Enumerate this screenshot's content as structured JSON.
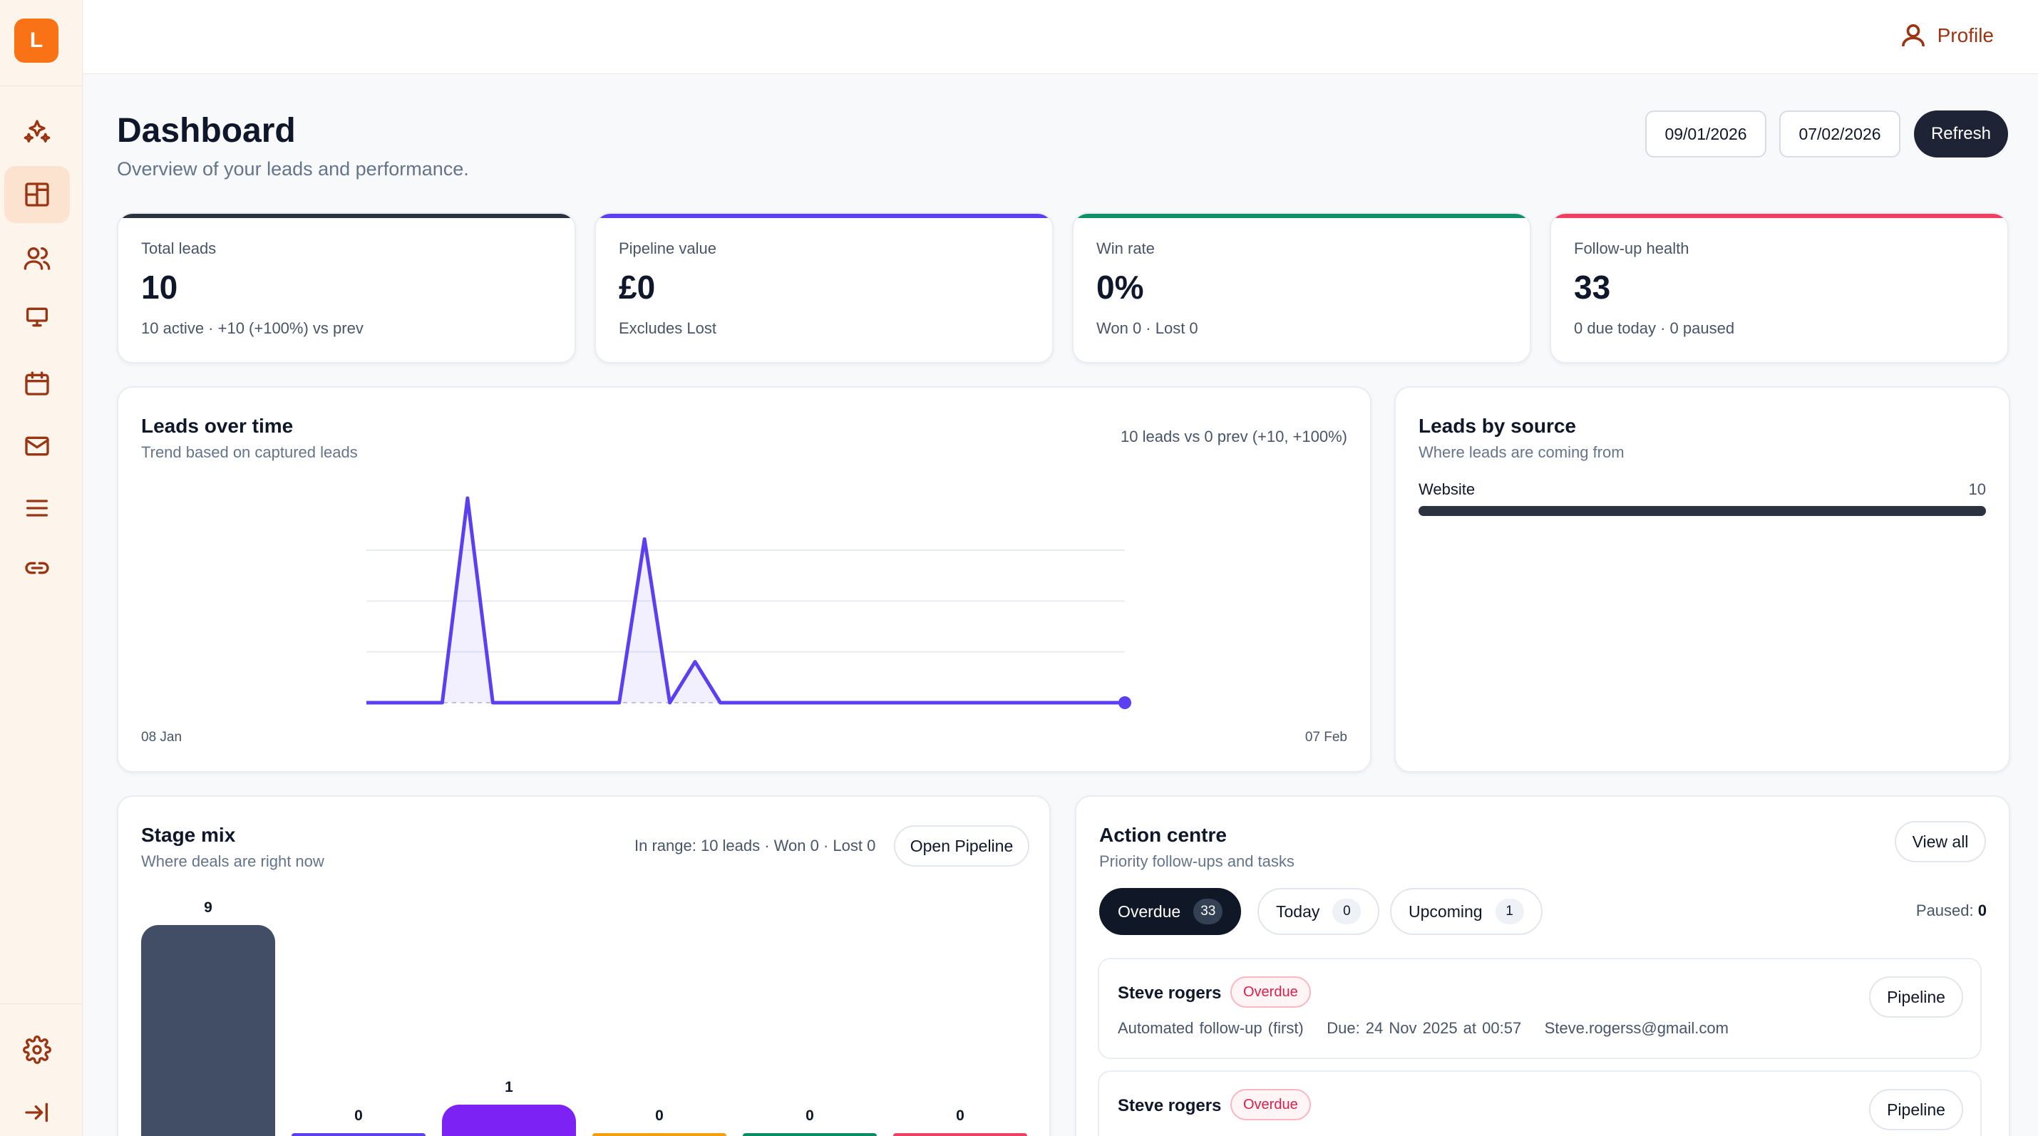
{
  "sidebar": {
    "logo_letter": "L",
    "items": [
      {
        "icon": "sparkles-icon",
        "name": "nav-ai"
      },
      {
        "icon": "dashboard-icon",
        "name": "nav-dashboard",
        "active": true
      },
      {
        "icon": "users-icon",
        "name": "nav-leads"
      },
      {
        "icon": "monitor-icon",
        "name": "nav-pipeline"
      },
      {
        "icon": "calendar-icon",
        "name": "nav-calendar"
      },
      {
        "icon": "mail-icon",
        "name": "nav-email"
      },
      {
        "icon": "menu-icon",
        "name": "nav-list"
      },
      {
        "icon": "link-icon",
        "name": "nav-integrations"
      }
    ],
    "bottom": [
      {
        "icon": "gear-icon",
        "name": "nav-settings"
      },
      {
        "icon": "collapse-icon",
        "name": "nav-collapse"
      }
    ]
  },
  "topbar": {
    "profile_label": "Profile"
  },
  "header": {
    "title": "Dashboard",
    "subtitle": "Overview of your leads and performance.",
    "date_from": "09/01/2026",
    "date_to": "07/02/2026",
    "refresh_label": "Refresh"
  },
  "kpis": [
    {
      "label": "Total leads",
      "value": "10",
      "sub": "10 active · +10 (+100%) vs prev",
      "color": "#2b3240"
    },
    {
      "label": "Pipeline value",
      "value": "£0",
      "sub": "Excludes Lost",
      "color": "#5b3ff0"
    },
    {
      "label": "Win rate",
      "value": "0%",
      "sub": "Won 0 · Lost 0",
      "color": "#119068"
    },
    {
      "label": "Follow-up health",
      "value": "33",
      "sub": "0 due today · 0 paused",
      "color": "#ef3f63"
    }
  ],
  "leads_over_time": {
    "title": "Leads over time",
    "subtitle": "Trend based on captured leads",
    "summary": "10 leads vs 0 prev (+10, +100%)",
    "start_label": "08 Jan",
    "end_label": "07 Feb"
  },
  "chart_data": {
    "type": "line",
    "x_start": "08 Jan",
    "x_end": "07 Feb",
    "values": [
      0,
      0,
      0,
      0,
      8,
      0,
      0,
      0,
      0,
      0,
      0,
      6.4,
      0,
      1.6,
      0,
      0,
      0,
      0,
      0,
      0,
      0,
      0,
      0,
      0,
      0,
      0,
      0,
      0,
      0,
      0,
      0
    ],
    "ylim": [
      0,
      8
    ],
    "color": "#5b3ff0",
    "grid": true
  },
  "leads_by_source": {
    "title": "Leads by source",
    "subtitle": "Where leads are coming from",
    "items": [
      {
        "label": "Website",
        "value": 10,
        "fraction": 1.0
      }
    ]
  },
  "stage_mix": {
    "title": "Stage mix",
    "subtitle": "Where deals are right now",
    "summary": "In range: 10 leads · Won 0 · Lost 0",
    "button": "Open Pipeline",
    "stages": [
      {
        "value": 9,
        "color": "#424e66"
      },
      {
        "value": 0,
        "color": "#5b3ff0"
      },
      {
        "value": 1,
        "color": "#7c22f5"
      },
      {
        "value": 0,
        "color": "#f59e0b"
      },
      {
        "value": 0,
        "color": "#0a8c63"
      },
      {
        "value": 0,
        "color": "#ef3f63"
      }
    ]
  },
  "action_centre": {
    "title": "Action centre",
    "subtitle": "Priority follow-ups and tasks",
    "view_all": "View all",
    "tabs": [
      {
        "label": "Overdue",
        "count": "33"
      },
      {
        "label": "Today",
        "count": "0"
      },
      {
        "label": "Upcoming",
        "count": "1"
      }
    ],
    "paused_label": "Paused:",
    "paused_count": "0",
    "tasks": [
      {
        "name": "Steve rogers",
        "badge": "Overdue",
        "meta": "Automated follow-up (first)    Due: 24 Nov 2025 at 00:57    Steve.rogerss@gmail.com",
        "button": "Pipeline"
      },
      {
        "name": "Steve rogers",
        "badge": "Overdue",
        "meta": "",
        "button": "Pipeline"
      }
    ]
  }
}
